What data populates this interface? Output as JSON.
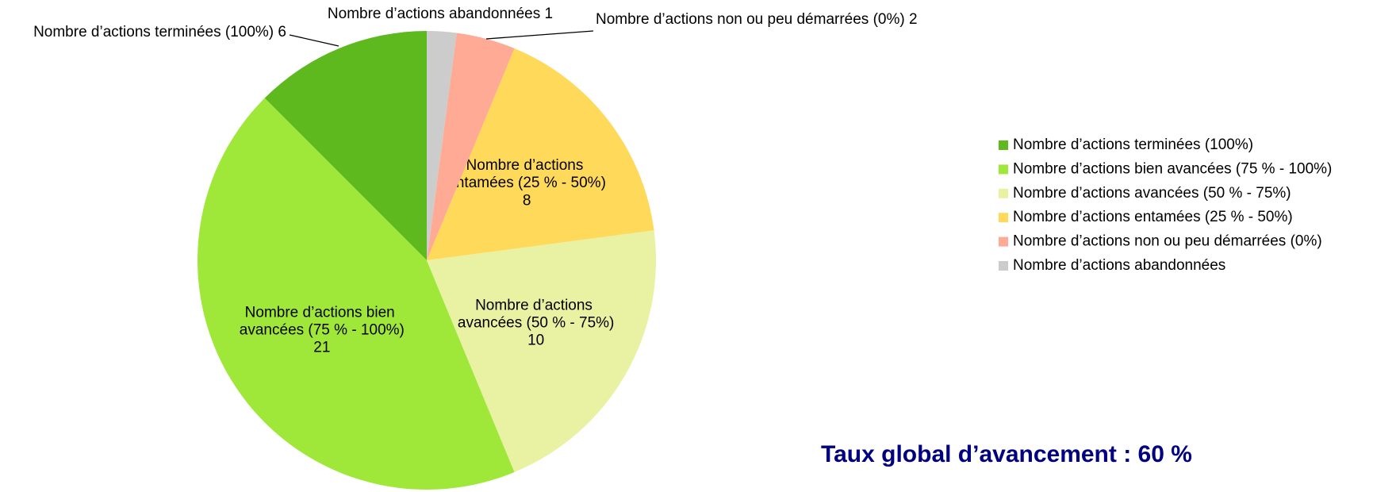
{
  "chart_data": {
    "type": "pie",
    "categories": [
      "Nombre d’actions terminées (100%)",
      "Nombre d’actions bien avancées (75 % - 100%)",
      "Nombre d’actions avancées (50 % - 75%)",
      "Nombre d’actions entamées (25 % - 50%)",
      "Nombre d’actions non ou peu démarrées (0%)",
      "Nombre d’actions abandonnées"
    ],
    "values": [
      6,
      21,
      10,
      8,
      2,
      1
    ],
    "colors": [
      "#5eb91e",
      "#9fe83a",
      "#e8f2a2",
      "#ffd95a",
      "#ffaa95",
      "#cccccc"
    ],
    "legend": "right",
    "annotation": "Taux global d’avancement : 60 %"
  }
}
